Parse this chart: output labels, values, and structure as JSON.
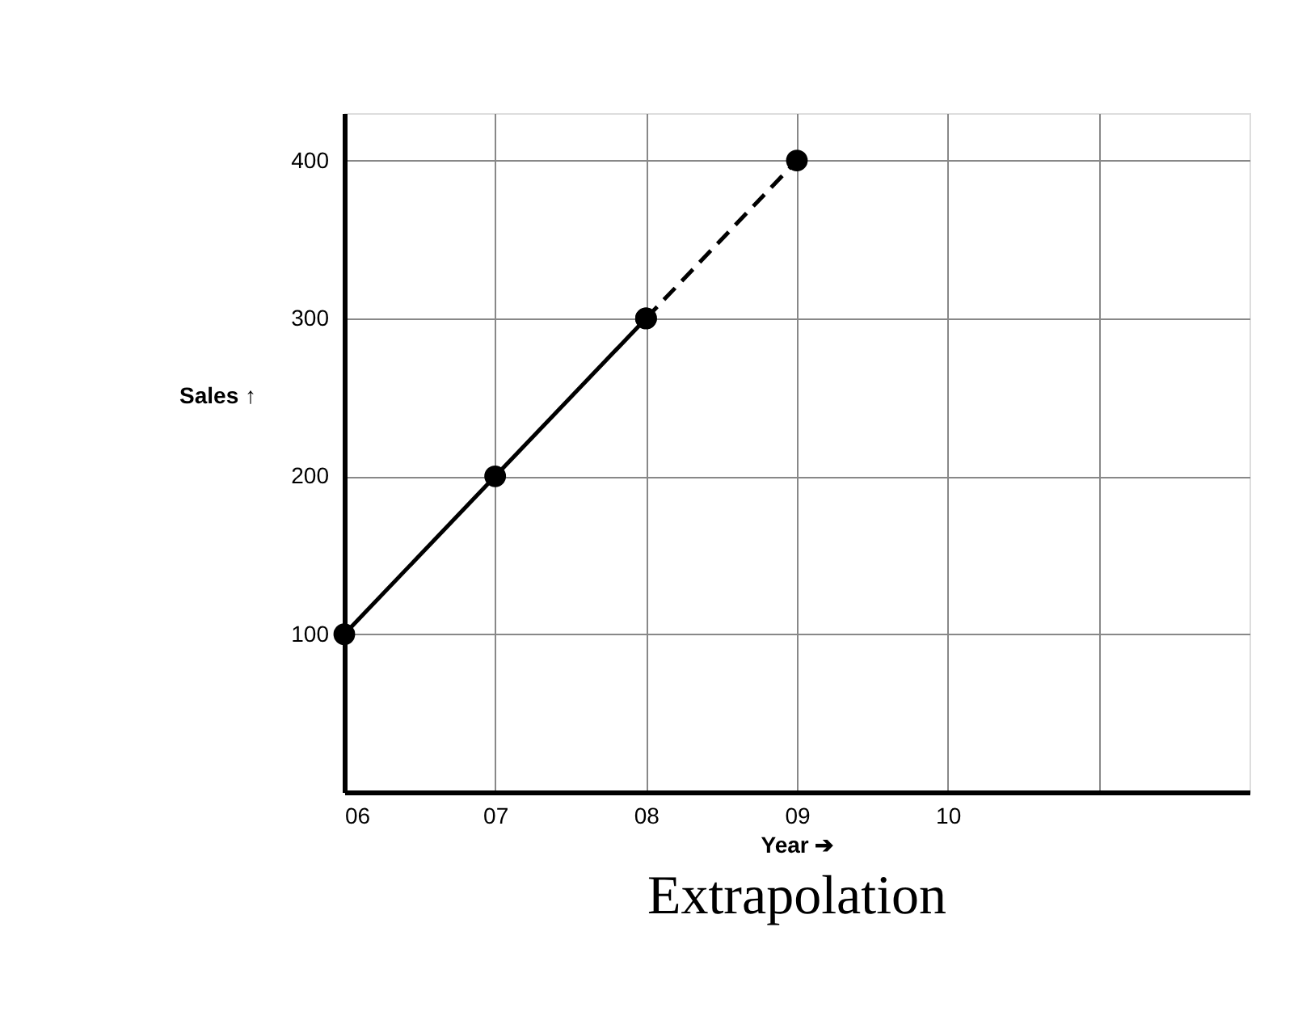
{
  "chart_data": {
    "type": "line",
    "title": "Extrapolation",
    "xlabel": "Year ➔",
    "ylabel": "Sales ↑",
    "categories": [
      "06",
      "07",
      "08",
      "09",
      "10",
      null
    ],
    "series": [
      {
        "color": "#000000",
        "values": [
          100,
          200,
          300,
          null,
          null,
          null
        ],
        "line_style": "solid"
      },
      {
        "color": "#000000",
        "values": [
          null,
          null,
          300,
          400,
          null,
          null
        ],
        "line_style": "dashed"
      }
    ],
    "ylim": [
      0,
      430
    ],
    "yticks": [
      100,
      200,
      300,
      400
    ],
    "grid": true,
    "marker": "circle"
  }
}
